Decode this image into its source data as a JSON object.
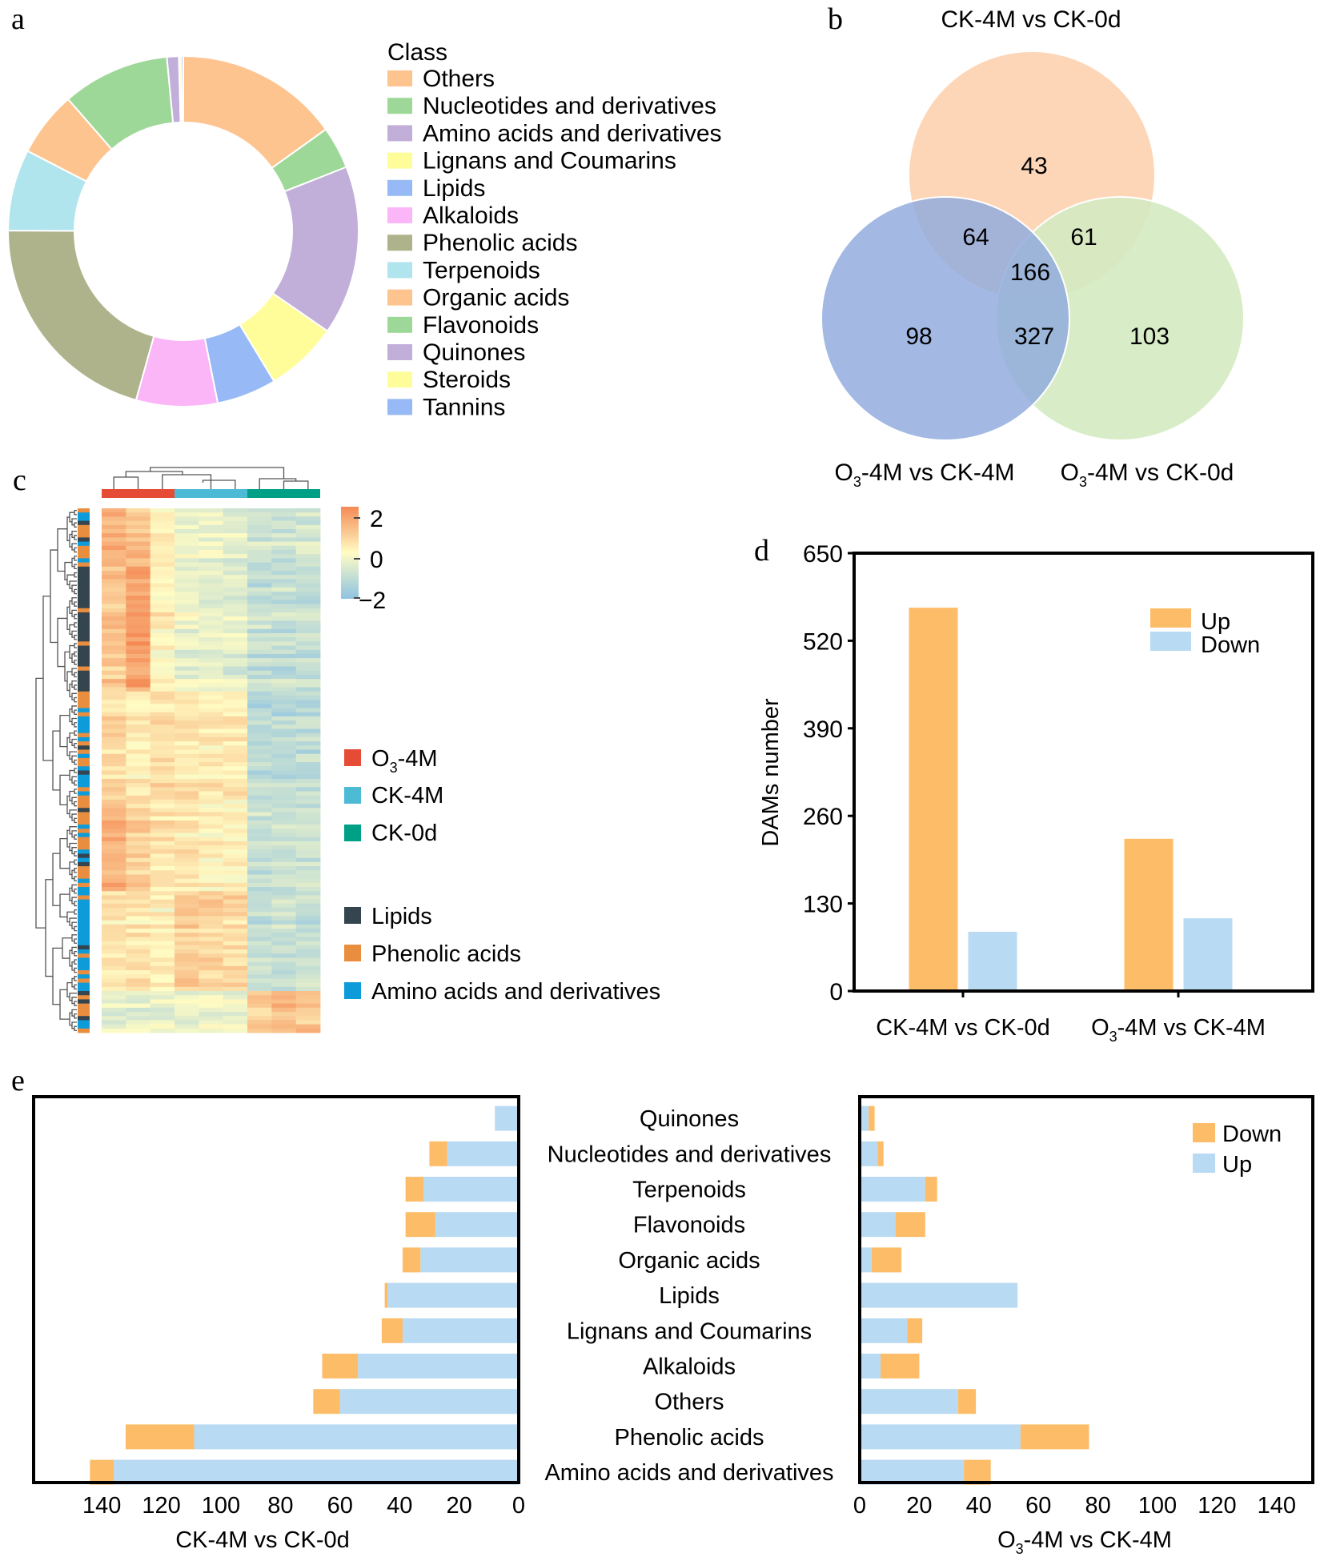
{
  "figure": {
    "panel_labels": {
      "a": "a",
      "b": "b",
      "c": "c",
      "d": "d",
      "e": "e"
    }
  },
  "chart_data": [
    {
      "panel": "a",
      "type": "pie",
      "variant": "donut",
      "title": "",
      "legend_title": "Class",
      "legend_position": "right",
      "units": "percent (estimated from slice angles)",
      "categories": [
        "Others",
        "Nucleotides and derivatives",
        "Amino acids and derivatives",
        "Lignans and Coumarins",
        "Lipids",
        "Alkaloids",
        "Phenolic acids",
        "Terpenoids",
        "Organic acids",
        "Flavonoids",
        "Quinones",
        "Steroids",
        "Tannins"
      ],
      "values": [
        15.1,
        3.9,
        15.6,
        6.7,
        5.5,
        7.5,
        20.7,
        7.5,
        6.0,
        9.9,
        1.1,
        0.2,
        0.2
      ],
      "colors": [
        "#FEC48F",
        "#9ED899",
        "#C2AFD9",
        "#FFFD9A",
        "#97B9F5",
        "#FBB6F8",
        "#AEB38C",
        "#B1E5EE",
        "#FEC48F",
        "#9ED899",
        "#C2AFD9",
        "#FFFD9A",
        "#97B9F5"
      ]
    },
    {
      "panel": "b",
      "type": "venn",
      "sets": [
        {
          "name": "CK-4M vs CK-0d",
          "label_main": "CK-4M vs CK-0d",
          "label_sub": "",
          "label_tail": "",
          "color": "#FDD2B0"
        },
        {
          "name": "O3-4M vs CK-4M",
          "label_main": "O",
          "label_sub": "3",
          "label_tail": "-4M vs CK-4M",
          "color": "#8FA9DE"
        },
        {
          "name": "O3-4M vs CK-0d",
          "label_main": "O",
          "label_sub": "3",
          "label_tail": "-4M vs CK-0d",
          "color": "#D4EAC1"
        }
      ],
      "regions": {
        "only_CK4M_vs_CK0d": 43,
        "CK4M_vs_CK0d_and_O34M_vs_CK4M": 64,
        "CK4M_vs_CK0d_and_O34M_vs_CK0d": 61,
        "all_three": 166,
        "only_O34M_vs_CK4M": 98,
        "O34M_vs_CK4M_and_O34M_vs_CK0d": 327,
        "only_O34M_vs_CK0d": 103
      },
      "region_labels": [
        "43",
        "64",
        "61",
        "166",
        "98",
        "327",
        "103"
      ]
    },
    {
      "panel": "c",
      "type": "heatmap",
      "colorbar": {
        "min": -2,
        "max": 2,
        "ticks": [
          "2",
          "0",
          "−2"
        ],
        "colors": [
          "#F58A55",
          "#FFFCC4",
          "#8EC3E2"
        ]
      },
      "column_groups": [
        {
          "label_main": "O",
          "label_sub": "3",
          "label_tail": "-4M",
          "color": "#E64B35",
          "replicates": 3
        },
        {
          "label_main": "CK-4M",
          "label_sub": "",
          "label_tail": "",
          "color": "#4DBBD5",
          "replicates": 3
        },
        {
          "label_main": "CK-0d",
          "label_sub": "",
          "label_tail": "",
          "color": "#00A087",
          "replicates": 3
        }
      ],
      "row_classes": [
        {
          "label": "Lipids",
          "color": "#34454F"
        },
        {
          "label": "Phenolic acids",
          "color": "#E98E3F"
        },
        {
          "label": "Amino acids and derivatives",
          "color": "#0D9BD9"
        }
      ],
      "row_blocks": [
        {
          "rows": 14,
          "means": [
            1.3,
            1.0,
            0.3,
            -0.4,
            -0.3,
            -0.5,
            -0.9,
            -0.9,
            -0.8
          ],
          "class_mix": [
            0.3,
            0.5,
            0.2
          ]
        },
        {
          "rows": 30,
          "means": [
            0.9,
            1.6,
            0.2,
            -0.4,
            -0.4,
            -0.5,
            -1.0,
            -1.0,
            -1.0
          ],
          "class_mix": [
            0.8,
            0.15,
            0.05
          ]
        },
        {
          "rows": 26,
          "means": [
            0.6,
            0.3,
            0.5,
            0.4,
            0.3,
            0.3,
            -1.2,
            -1.2,
            -1.1
          ],
          "class_mix": [
            0.1,
            0.4,
            0.5
          ]
        },
        {
          "rows": 22,
          "means": [
            1.3,
            0.8,
            0.4,
            0.3,
            0.2,
            0.1,
            -1.0,
            -1.0,
            -0.9
          ],
          "class_mix": [
            0.1,
            0.5,
            0.4
          ]
        },
        {
          "rows": 24,
          "means": [
            0.4,
            0.3,
            0.1,
            0.8,
            0.6,
            0.5,
            -1.0,
            -1.0,
            -1.0
          ],
          "class_mix": [
            0.05,
            0.25,
            0.7
          ]
        },
        {
          "rows": 10,
          "means": [
            -0.5,
            -0.5,
            -0.4,
            -0.3,
            -0.2,
            -0.3,
            1.0,
            1.2,
            0.9
          ],
          "class_mix": [
            0.2,
            0.7,
            0.1
          ]
        }
      ]
    },
    {
      "panel": "d",
      "type": "bar",
      "title": "",
      "xlabel": "",
      "ylabel": "DAMs number",
      "ylim": [
        0,
        650
      ],
      "yticks": [
        0,
        130,
        260,
        390,
        520,
        650
      ],
      "grid": false,
      "legend_position": "top-right",
      "categories": [
        {
          "label_main": "CK-4M vs CK-0d",
          "label_sub": "",
          "label_tail": ""
        },
        {
          "label_main": "O",
          "label_sub": "3",
          "label_tail": "-4M vs CK-4M"
        }
      ],
      "series": [
        {
          "name": "Up",
          "color": "#FDBC68",
          "values": [
            569,
            226
          ]
        },
        {
          "name": "Down",
          "color": "#B8DAF3",
          "values": [
            88,
            108
          ]
        }
      ]
    },
    {
      "panel": "e",
      "type": "bar",
      "orientation": "horizontal-stacked",
      "categories": [
        "Quinones",
        "Nucleotides and derivatives",
        "Terpenoids",
        "Flavonoids",
        "Organic acids",
        "Lipids",
        "Lignans and Coumarins",
        "Alkaloids",
        "Others",
        "Phenolic acids",
        "Amino acids and derivatives"
      ],
      "legend": [
        {
          "name": "Down",
          "color": "#FDBC68"
        },
        {
          "name": "Up",
          "color": "#B8DAF3"
        }
      ],
      "legend_position": "top-right (right subplot)",
      "subplots": [
        {
          "xlabel_main": "CK-4M vs CK-0d",
          "xlabel_sub": "",
          "xlabel_tail": "",
          "direction": "leftward",
          "xlim": [
            0,
            150
          ],
          "xticks": [
            140,
            120,
            100,
            80,
            60,
            40,
            20,
            0
          ],
          "series": [
            {
              "name": "Up",
              "values": [
                8,
                24,
                32,
                28,
                33,
                44,
                39,
                54,
                60,
                109,
                136
              ]
            },
            {
              "name": "Down",
              "values": [
                0,
                6,
                6,
                10,
                6,
                1,
                7,
                12,
                9,
                23,
                8
              ]
            }
          ]
        },
        {
          "xlabel_main": "O",
          "xlabel_sub": "3",
          "xlabel_tail": "-4M vs CK-4M",
          "direction": "rightward",
          "xlim": [
            0,
            154
          ],
          "xticks": [
            0,
            20,
            40,
            60,
            80,
            100,
            120,
            140
          ],
          "series": [
            {
              "name": "Up",
              "values": [
                3,
                6,
                22,
                12,
                4,
                53,
                16,
                7,
                33,
                54,
                35
              ]
            },
            {
              "name": "Down",
              "values": [
                2,
                2,
                4,
                10,
                10,
                0,
                5,
                13,
                6,
                23,
                9
              ]
            }
          ]
        }
      ]
    }
  ]
}
